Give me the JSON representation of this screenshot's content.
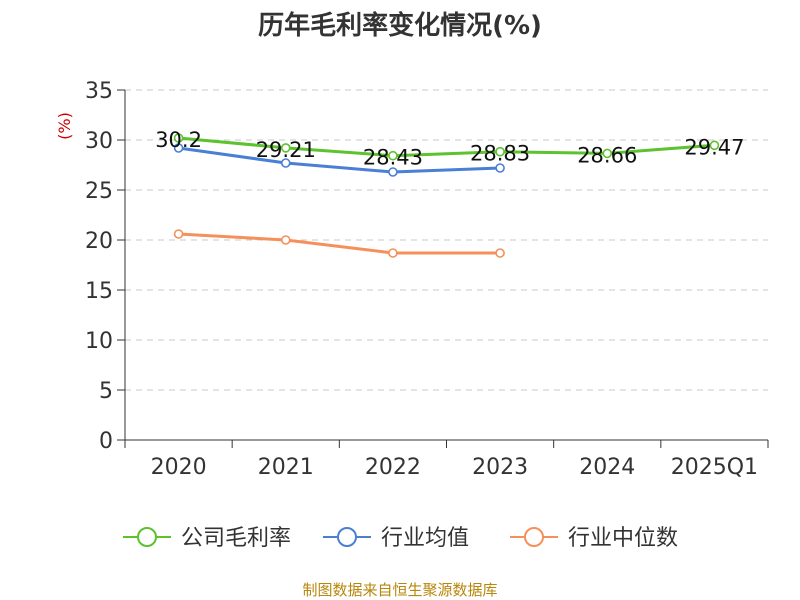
{
  "chart_data": {
    "type": "line",
    "title": "历年毛利率变化情况(%)",
    "ylabel": "(%)",
    "xlabel": "",
    "categories": [
      "2020",
      "2021",
      "2022",
      "2023",
      "2024",
      "2025Q1"
    ],
    "ylim": [
      0,
      35
    ],
    "yticks": [
      0,
      5,
      10,
      15,
      20,
      25,
      30,
      35
    ],
    "grid": true,
    "legend_position": "bottom",
    "series": [
      {
        "name": "公司毛利率",
        "color": "#5cc22d",
        "values": [
          30.2,
          29.21,
          28.43,
          28.83,
          28.66,
          29.47
        ],
        "labels": [
          "30.2",
          "29.21",
          "28.43",
          "28.83",
          "28.66",
          "29.47"
        ]
      },
      {
        "name": "行业均值",
        "color": "#4a7fd6",
        "values": [
          29.2,
          27.7,
          26.8,
          27.2,
          null,
          null
        ]
      },
      {
        "name": "行业中位数",
        "color": "#f5905a",
        "values": [
          20.6,
          20.0,
          18.7,
          18.7,
          null,
          null
        ]
      }
    ],
    "source": "制图数据来自恒生聚源数据库"
  }
}
